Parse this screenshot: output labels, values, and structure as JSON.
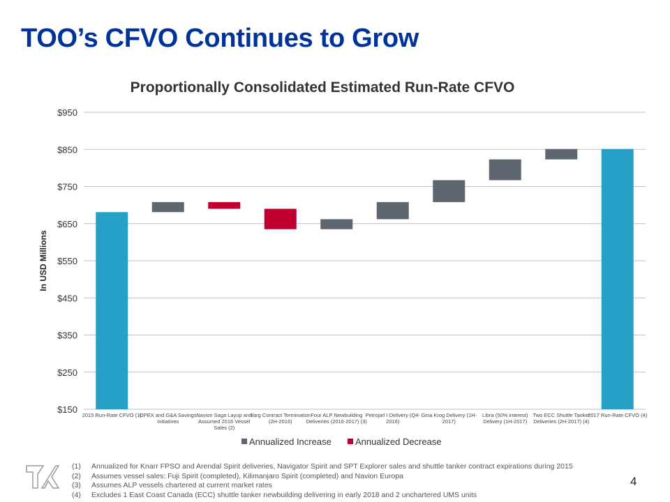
{
  "slide": {
    "title": "TOO’s CFVO Continues to Grow",
    "page_number": "4",
    "logo_icon": "teekay-tk-logo"
  },
  "colors": {
    "title": "#003399",
    "total": "#27A0C8",
    "increase": "#5E6670",
    "decrease": "#C0002F",
    "gridline": "#BFBFBF"
  },
  "chart_data": {
    "type": "bar",
    "subtype": "waterfall",
    "title": "Proportionally Consolidated Estimated Run-Rate CFVO",
    "xlabel": "",
    "ylabel": "In USD Millions",
    "ylim": [
      150,
      950
    ],
    "yticks": [
      150,
      250,
      350,
      450,
      550,
      650,
      750,
      850,
      950
    ],
    "ytick_labels": [
      "$150",
      "$250",
      "$350",
      "$450",
      "$550",
      "$650",
      "$750",
      "$850",
      "$950"
    ],
    "grid": true,
    "categories": [
      "2015 Run-Rate CFVO (1)",
      "OPEX and G&A Savings Initiatives",
      "Navion Saga Layup and Assumed 2016 Vessel Sales (2)",
      "Varg Contract Termination (2H-2016)",
      "Four ALP Newbuilding Deliveries (2016-2017) (3)",
      "Petrojarl I Delivery (Q4-2016)",
      "Gina Krog Delivery (1H-2017)",
      "Libra (50% interest) Delivery (1H-2017)",
      "Two ECC Shuttle Tanker Deliveries (2H-2017) (4)",
      "2017 Run-Rate CFVO (4)"
    ],
    "category_label_lines": [
      [
        "2015 Run-Rate CFVO (1)"
      ],
      [
        "OPEX and G&A Savings",
        "Initiatives"
      ],
      [
        "Navion Saga Layup and",
        "Assumed 2016 Vessel",
        "Sales (2)"
      ],
      [
        "Varg Contract Termination",
        "(2H-2016)"
      ],
      [
        "Four ALP Newbuilding",
        "Deliveries (2016-2017) (3)"
      ],
      [
        "Petrojarl I Delivery (Q4-",
        "2016)"
      ],
      [
        "Gina Krog Delivery (1H-",
        "2017)"
      ],
      [
        "Libra (50% interest)",
        "Delivery (1H-2017)"
      ],
      [
        "Two ECC Shuttle Tanker",
        "Deliveries (2H-2017) (4)"
      ],
      [
        "2017 Run-Rate CFVO (4)"
      ]
    ],
    "kinds": [
      "total",
      "increase",
      "decrease",
      "decrease",
      "increase",
      "increase",
      "increase",
      "increase",
      "increase",
      "total"
    ],
    "values": [
      681,
      27,
      -18,
      -55,
      27,
      46,
      59,
      56,
      28,
      851
    ],
    "legend": {
      "position": "bottom",
      "entries": [
        {
          "label": "Annualized Increase",
          "kind": "increase"
        },
        {
          "label": "Annualized Decrease",
          "kind": "decrease"
        }
      ]
    }
  },
  "footnotes": [
    {
      "num": "(1)",
      "text": "Annualized for Knarr FPSO and Arendal Spirit deliveries, Navigator Spirit and SPT Explorer sales and shuttle tanker contract expirations during 2015"
    },
    {
      "num": "(2)",
      "text": "Assumes vessel sales: Fuji Spirit (completed), Kilimanjaro Spirit (completed) and Navion Europa"
    },
    {
      "num": "(3)",
      "text": "Assumes ALP vessels chartered at current market rates"
    },
    {
      "num": "(4)",
      "text": "Excludes 1 East Coast Canada (ECC) shuttle tanker newbuilding delivering in early 2018 and 2 unchartered UMS units"
    }
  ]
}
